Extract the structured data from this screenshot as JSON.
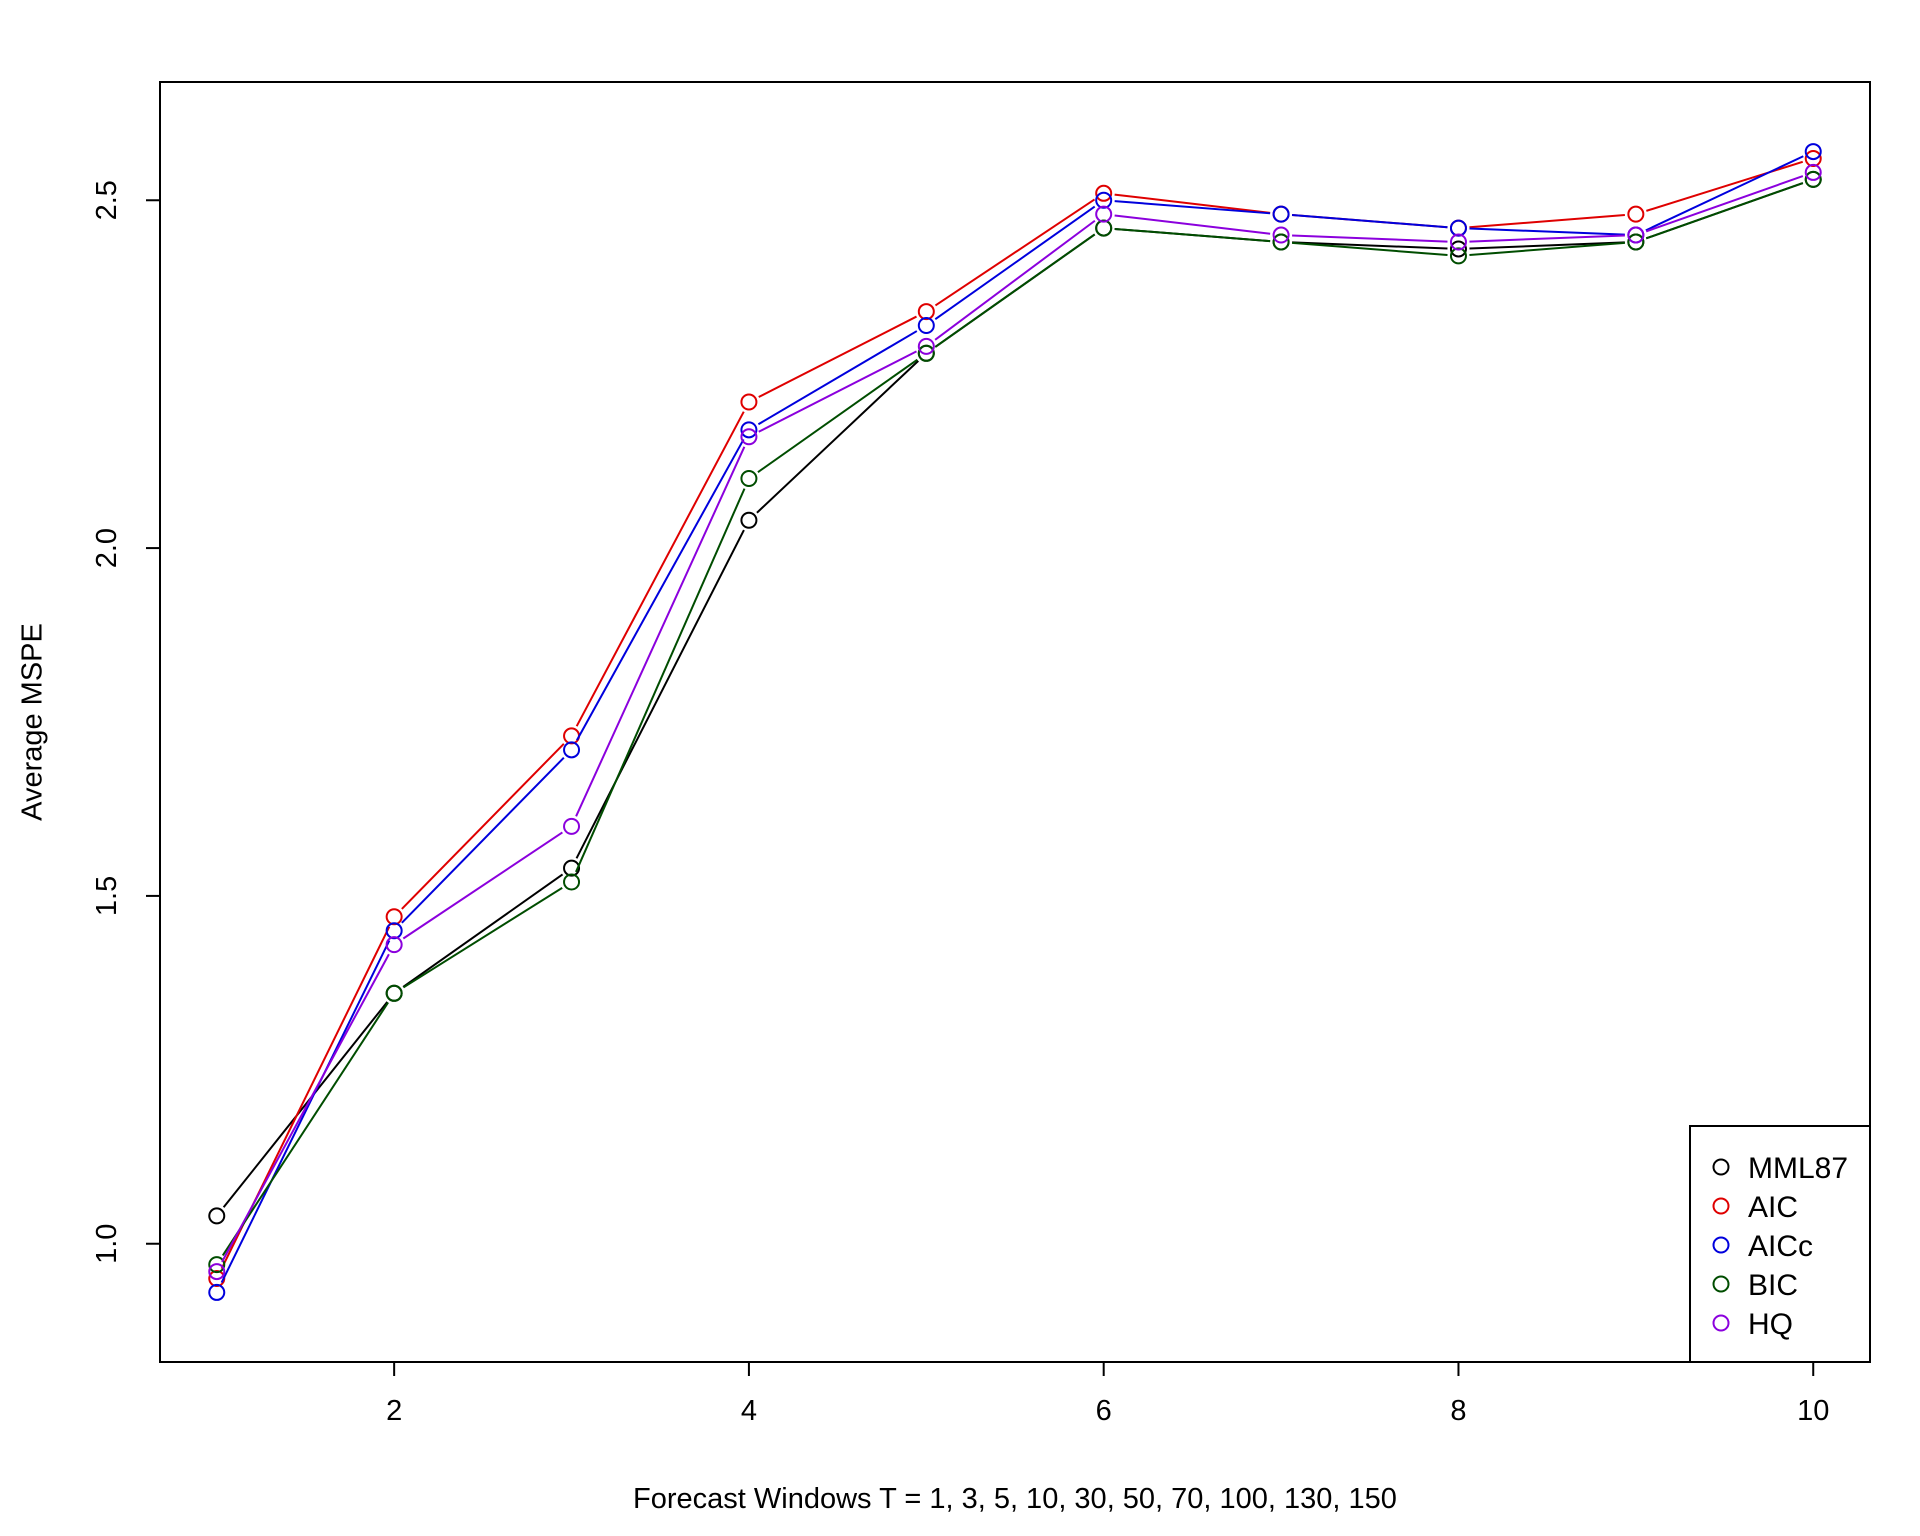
{
  "chart_data": {
    "type": "line",
    "title": "",
    "xlabel": "Forecast Windows T = 1, 3, 5, 10, 30, 50, 70, 100, 130, 150",
    "ylabel": "Average MSPE",
    "x": [
      1,
      2,
      3,
      4,
      5,
      6,
      7,
      8,
      9,
      10
    ],
    "xlim": [
      0.68,
      10.32
    ],
    "ylim": [
      0.83,
      2.67
    ],
    "xticks": [
      2,
      4,
      6,
      8,
      10
    ],
    "yticks": [
      1.0,
      1.5,
      2.0,
      2.5
    ],
    "xtick_labels": [
      "2",
      "4",
      "6",
      "8",
      "10"
    ],
    "ytick_labels": [
      "1.0",
      "1.5",
      "2.0",
      "2.5"
    ],
    "grid": false,
    "legend_position": "bottom-right",
    "series": [
      {
        "name": "MML87",
        "color": "#000000",
        "values": [
          1.04,
          1.36,
          1.54,
          2.04,
          2.28,
          2.46,
          2.44,
          2.43,
          2.44,
          2.53
        ]
      },
      {
        "name": "AIC",
        "color": "#DF0000",
        "values": [
          0.95,
          1.47,
          1.73,
          2.21,
          2.34,
          2.51,
          2.48,
          2.46,
          2.48,
          2.56
        ]
      },
      {
        "name": "AICc",
        "color": "#0000DD",
        "values": [
          0.93,
          1.45,
          1.71,
          2.17,
          2.32,
          2.5,
          2.48,
          2.46,
          2.45,
          2.57
        ]
      },
      {
        "name": "BIC",
        "color": "#004D00",
        "values": [
          0.97,
          1.36,
          1.52,
          2.1,
          2.28,
          2.46,
          2.44,
          2.42,
          2.44,
          2.53
        ]
      },
      {
        "name": "HQ",
        "color": "#8B00DD",
        "values": [
          0.96,
          1.43,
          1.6,
          2.16,
          2.29,
          2.48,
          2.45,
          2.44,
          2.45,
          2.54
        ]
      }
    ]
  }
}
